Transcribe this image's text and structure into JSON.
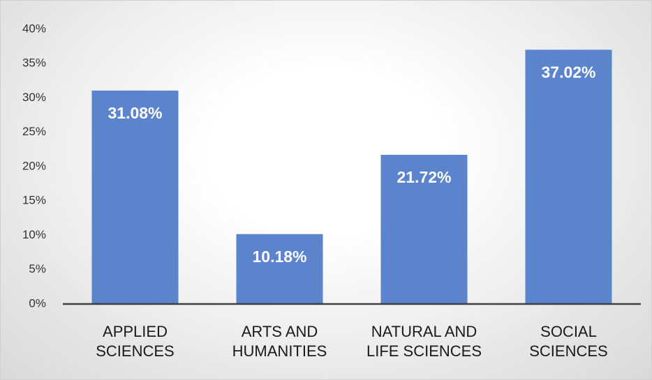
{
  "chart_data": {
    "type": "bar",
    "categories": [
      "APPLIED\nSCIENCES",
      "ARTS AND\nHUMANITIES",
      "NATURAL AND\nLIFE SCIENCES",
      "SOCIAL\nSCIENCES"
    ],
    "values": [
      31.08,
      10.18,
      21.72,
      37.02
    ],
    "value_labels": [
      "31.08%",
      "10.18%",
      "21.72%",
      "37.02%"
    ],
    "color": "#5b84cc",
    "ylim": [
      0,
      40
    ],
    "yticks": [
      {
        "value": 0,
        "label": "0%"
      },
      {
        "value": 5,
        "label": "5%"
      },
      {
        "value": 10,
        "label": "10%"
      },
      {
        "value": 15,
        "label": "15%"
      },
      {
        "value": 20,
        "label": "20%"
      },
      {
        "value": 25,
        "label": "25%"
      },
      {
        "value": 30,
        "label": "30%"
      },
      {
        "value": 35,
        "label": "35%"
      },
      {
        "value": 40,
        "label": "40%"
      }
    ],
    "grid": false
  }
}
